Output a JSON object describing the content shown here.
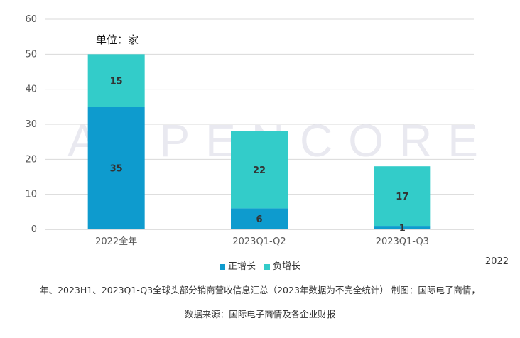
{
  "chart_data": {
    "type": "bar",
    "stacked": true,
    "categories": [
      "2022全年",
      "2023Q1-Q2",
      "2023Q1-Q3"
    ],
    "series": [
      {
        "name": "正增长",
        "values": [
          35,
          6,
          1
        ],
        "color": "#0e9bce"
      },
      {
        "name": "负增长",
        "values": [
          15,
          22,
          17
        ],
        "color": "#33ccc9"
      }
    ],
    "ylim": [
      0,
      60
    ],
    "yticks": [
      0,
      10,
      20,
      30,
      40,
      50,
      60
    ],
    "grid": true,
    "unit_label": "单位：家",
    "watermark": "ASPENCORE",
    "legend_position": "bottom"
  },
  "caption": {
    "tail": "2022",
    "line1": "年、2023H1、2023Q1-Q3全球头部分销商营收信息汇总（2023年数据为不完全统计） 制图：国际电子商情，",
    "line2": "数据来源：国际电子商情及各企业财报"
  }
}
